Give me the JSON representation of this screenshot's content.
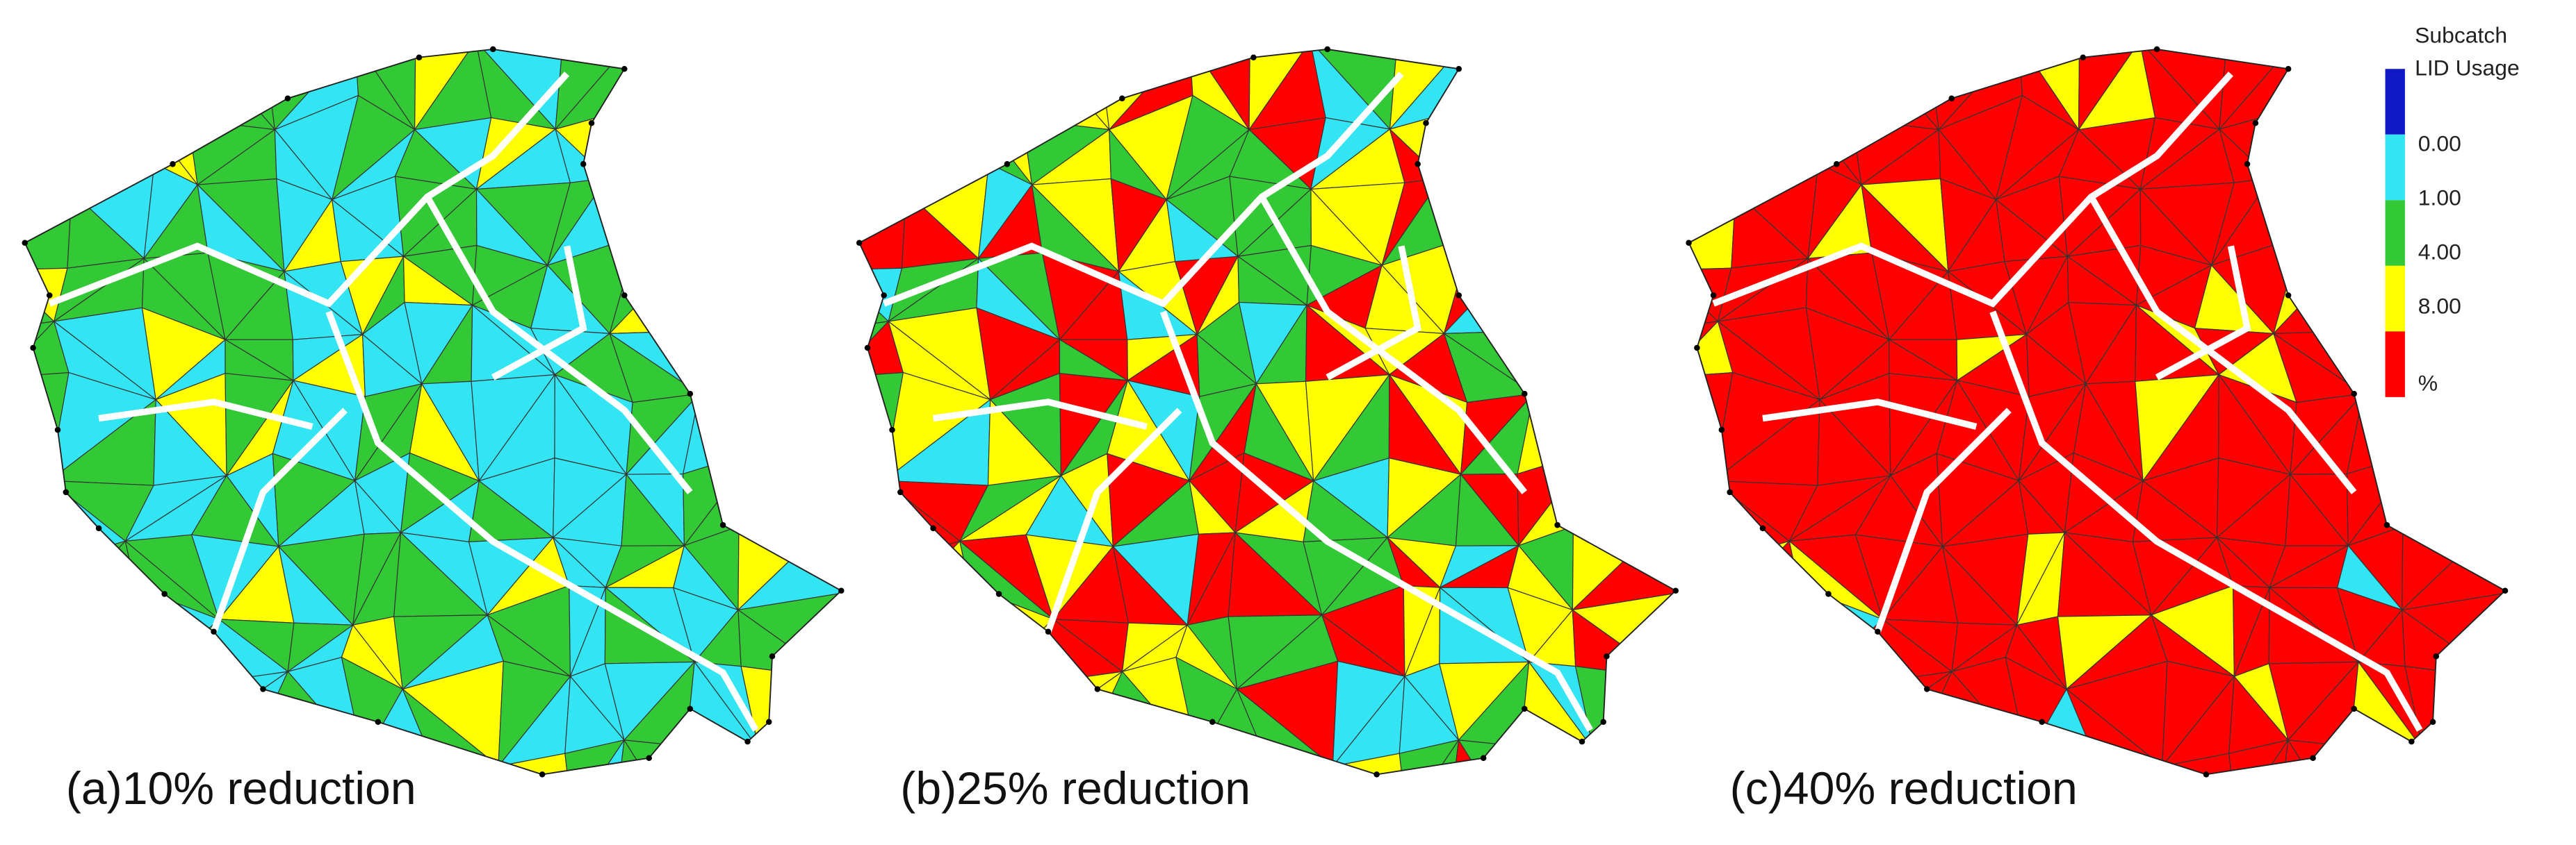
{
  "maps": [
    {
      "caption": "(a)10% reduction"
    },
    {
      "caption": "(b)25% reduction"
    },
    {
      "caption": "(c)40% reduction"
    }
  ],
  "legend": {
    "title": [
      "Subcatch",
      "LID Usage"
    ],
    "colors": [
      "#1018c8",
      "#33e4f2",
      "#33c936",
      "#ffff00",
      "#ff0000"
    ],
    "labels": [
      "0.00",
      "1.00",
      "4.00",
      "8.00",
      "%"
    ]
  }
}
